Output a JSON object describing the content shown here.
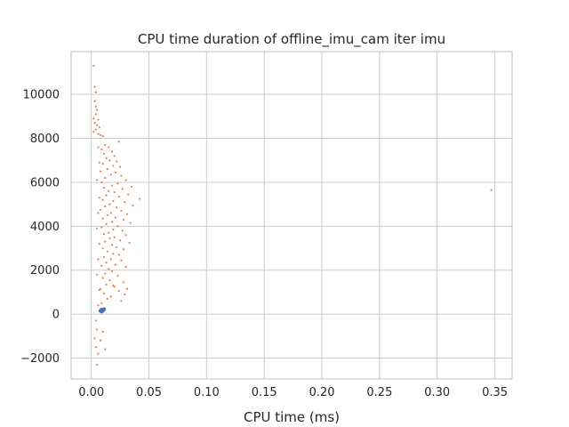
{
  "chart_data": {
    "type": "scatter",
    "title": "CPU time duration of offline_imu_cam iter imu",
    "xlabel": "CPU time (ms)",
    "ylabel": "",
    "xlim": [
      -0.0175,
      0.365
    ],
    "ylim": [
      -2950,
      11950
    ],
    "xticks": [
      0.0,
      0.05,
      0.1,
      0.15,
      0.2,
      0.25,
      0.3,
      0.35
    ],
    "xtick_labels": [
      "0.00",
      "0.05",
      "0.10",
      "0.15",
      "0.20",
      "0.25",
      "0.30",
      "0.35"
    ],
    "yticks": [
      -2000,
      0,
      2000,
      4000,
      6000,
      8000,
      10000
    ],
    "ytick_labels": [
      "−2000",
      "0",
      "2000",
      "4000",
      "6000",
      "8000",
      "10000"
    ],
    "grid": true,
    "legend": "none",
    "series": [
      {
        "color": "#dd8452",
        "points": [
          [
            0.002,
            11300
          ],
          [
            0.003,
            10350
          ],
          [
            0.004,
            10100
          ],
          [
            0.003,
            9700
          ],
          [
            0.004,
            9450
          ],
          [
            0.005,
            9300
          ],
          [
            0.004,
            9100
          ],
          [
            0.002,
            8900
          ],
          [
            0.006,
            8850
          ],
          [
            0.003,
            8700
          ],
          [
            0.005,
            8600
          ],
          [
            0.007,
            8500
          ],
          [
            0.004,
            8400
          ],
          [
            0.002,
            8300
          ],
          [
            0.006,
            8200
          ],
          [
            0.008,
            8150
          ],
          [
            0.01,
            8100
          ],
          [
            0.024,
            7850
          ],
          [
            0.012,
            7700
          ],
          [
            0.015,
            7600
          ],
          [
            0.009,
            7500
          ],
          [
            0.018,
            7400
          ],
          [
            0.011,
            7300
          ],
          [
            0.02,
            7200
          ],
          [
            0.013,
            7100
          ],
          [
            0.016,
            7000
          ],
          [
            0.022,
            6950
          ],
          [
            0.01,
            6850
          ],
          [
            0.019,
            6750
          ],
          [
            0.025,
            6700
          ],
          [
            0.014,
            6600
          ],
          [
            0.008,
            6500
          ],
          [
            0.021,
            6450
          ],
          [
            0.017,
            6350
          ],
          [
            0.026,
            6300
          ],
          [
            0.012,
            6200
          ],
          [
            0.03,
            6100
          ],
          [
            0.009,
            6000
          ],
          [
            0.023,
            5950
          ],
          [
            0.018,
            5850
          ],
          [
            0.035,
            5800
          ],
          [
            0.011,
            5750
          ],
          [
            0.027,
            5700
          ],
          [
            0.015,
            5600
          ],
          [
            0.02,
            5550
          ],
          [
            0.032,
            5450
          ],
          [
            0.013,
            5400
          ],
          [
            0.024,
            5350
          ],
          [
            0.042,
            5250
          ],
          [
            0.01,
            5200
          ],
          [
            0.019,
            5150
          ],
          [
            0.029,
            5100
          ],
          [
            0.016,
            5000
          ],
          [
            0.036,
            4950
          ],
          [
            0.012,
            4900
          ],
          [
            0.022,
            4850
          ],
          [
            0.008,
            4750
          ],
          [
            0.026,
            4700
          ],
          [
            0.017,
            4600
          ],
          [
            0.031,
            4550
          ],
          [
            0.014,
            4500
          ],
          [
            0.021,
            4400
          ],
          [
            0.01,
            4350
          ],
          [
            0.028,
            4300
          ],
          [
            0.018,
            4200
          ],
          [
            0.034,
            4150
          ],
          [
            0.013,
            4100
          ],
          [
            0.023,
            4000
          ],
          [
            0.009,
            3950
          ],
          [
            0.019,
            3850
          ],
          [
            0.027,
            3800
          ],
          [
            0.015,
            3700
          ],
          [
            0.011,
            3650
          ],
          [
            0.03,
            3600
          ],
          [
            0.02,
            3500
          ],
          [
            0.016,
            3450
          ],
          [
            0.025,
            3350
          ],
          [
            0.012,
            3300
          ],
          [
            0.033,
            3250
          ],
          [
            0.018,
            3150
          ],
          [
            0.022,
            3050
          ],
          [
            0.01,
            3000
          ],
          [
            0.028,
            2950
          ],
          [
            0.014,
            2850
          ],
          [
            0.019,
            2750
          ],
          [
            0.024,
            2700
          ],
          [
            0.011,
            2600
          ],
          [
            0.017,
            2500
          ],
          [
            0.026,
            2450
          ],
          [
            0.013,
            2350
          ],
          [
            0.021,
            2250
          ],
          [
            0.009,
            2200
          ],
          [
            0.03,
            2150
          ],
          [
            0.015,
            2050
          ],
          [
            0.018,
            1950
          ],
          [
            0.012,
            1850
          ],
          [
            0.023,
            1750
          ],
          [
            0.01,
            1650
          ],
          [
            0.016,
            1550
          ],
          [
            0.028,
            1450
          ],
          [
            0.013,
            1350
          ],
          [
            0.02,
            1250
          ],
          [
            0.008,
            1150
          ],
          [
            0.024,
            1050
          ],
          [
            0.011,
            950
          ],
          [
            0.029,
            900
          ],
          [
            0.017,
            800
          ],
          [
            0.014,
            700
          ],
          [
            0.026,
            600
          ],
          [
            0.019,
            1300
          ],
          [
            0.031,
            1150
          ],
          [
            0.009,
            500
          ],
          [
            0.347,
            5650
          ],
          [
            0.006,
            7600
          ],
          [
            0.007,
            6900
          ],
          [
            0.005,
            6100
          ],
          [
            0.007,
            5300
          ],
          [
            0.006,
            4600
          ],
          [
            0.005,
            3900
          ],
          [
            0.007,
            3200
          ],
          [
            0.006,
            2500
          ],
          [
            0.005,
            1800
          ],
          [
            0.007,
            1100
          ],
          [
            0.006,
            400
          ],
          [
            0.004,
            -300
          ],
          [
            0.005,
            -700
          ],
          [
            0.003,
            -1100
          ],
          [
            0.004,
            -1500
          ],
          [
            0.006,
            -1800
          ],
          [
            0.005,
            -2300
          ],
          [
            0.012,
            -1600
          ],
          [
            0.008,
            -1200
          ],
          [
            0.01,
            -800
          ]
        ]
      },
      {
        "color": "#4c72b0",
        "points": [
          [
            0.008,
            150
          ],
          [
            0.009,
            200
          ],
          [
            0.01,
            160
          ],
          [
            0.011,
            220
          ],
          [
            0.009,
            120
          ]
        ]
      }
    ]
  }
}
